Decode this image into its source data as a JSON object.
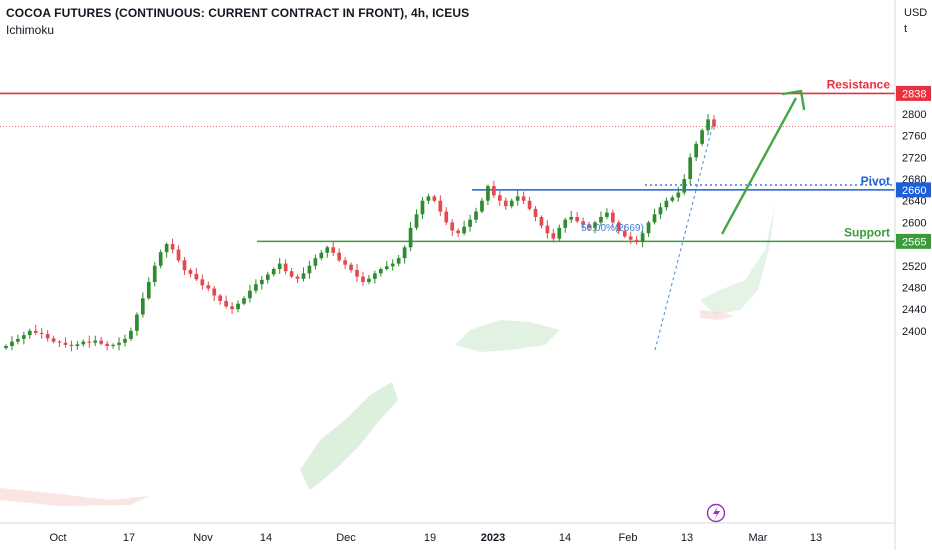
{
  "header": {
    "title": "COCOA FUTURES (CONTINUOUS: CURRENT CONTRACT IN FRONT), 4h, ICEUS",
    "indicator": "Ichimoku"
  },
  "price_scale": {
    "currency": "USD",
    "unit": "t"
  },
  "colors": {
    "resistance": "#e8303f",
    "pivot": "#1f5fd6",
    "support": "#3b9b3b",
    "candle_up": "#2e8b2e",
    "candle_down": "#e5484d",
    "cloud_green": "#cfe9cf",
    "cloud_red": "#f7d3d3",
    "arrow": "#43a843",
    "axis_text": "#131722"
  },
  "icons": {
    "event": "lightning-bolt-icon"
  },
  "chart_data": {
    "type": "candlestick",
    "timeframe": "4h",
    "x_ticks": [
      "Oct",
      "17",
      "Nov",
      "14",
      "Dec",
      "19",
      "2023",
      "14",
      "Feb",
      "13",
      "Mar",
      "13"
    ],
    "y_ticks": [
      2400,
      2440,
      2480,
      2520,
      2560,
      2600,
      2640,
      2680,
      2720,
      2760,
      2800
    ],
    "ylim": [
      2370,
      2870
    ],
    "levels": [
      {
        "name": "Resistance",
        "value": 2838
      },
      {
        "name": "Pivot",
        "value": 2660
      },
      {
        "name": "Support",
        "value": 2565
      }
    ],
    "fibonacci": {
      "label": "50.00%(2669)",
      "value": 2669
    },
    "last_price": 2777,
    "series_close": [
      2372,
      2380,
      2385,
      2392,
      2400,
      2396,
      2394,
      2386,
      2380,
      2378,
      2374,
      2372,
      2375,
      2380,
      2378,
      2382,
      2376,
      2372,
      2374,
      2378,
      2385,
      2400,
      2430,
      2460,
      2490,
      2520,
      2545,
      2560,
      2550,
      2530,
      2512,
      2505,
      2495,
      2484,
      2478,
      2465,
      2455,
      2445,
      2440,
      2450,
      2460,
      2474,
      2486,
      2494,
      2504,
      2514,
      2524,
      2510,
      2500,
      2496,
      2506,
      2520,
      2534,
      2544,
      2554,
      2544,
      2530,
      2522,
      2512,
      2500,
      2490,
      2496,
      2506,
      2514,
      2519,
      2524,
      2534,
      2554,
      2590,
      2615,
      2640,
      2648,
      2640,
      2620,
      2600,
      2585,
      2580,
      2592,
      2605,
      2620,
      2640,
      2667,
      2650,
      2640,
      2630,
      2640,
      2648,
      2640,
      2625,
      2610,
      2594,
      2580,
      2570,
      2590,
      2605,
      2610,
      2602,
      2596,
      2590,
      2600,
      2610,
      2618,
      2600,
      2584,
      2574,
      2568,
      2564,
      2580,
      2600,
      2615,
      2628,
      2640,
      2646,
      2655,
      2680,
      2720,
      2745,
      2770,
      2790,
      2777
    ]
  }
}
